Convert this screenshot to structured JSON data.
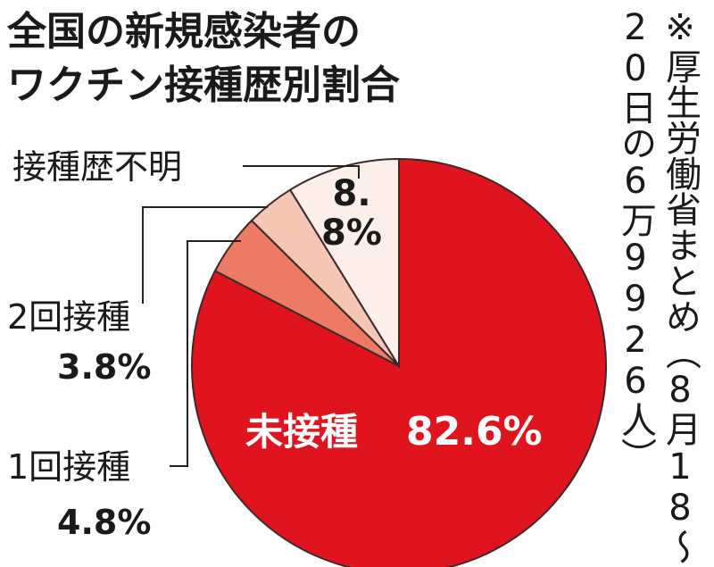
{
  "chart_data": {
    "type": "pie",
    "title_lines": [
      "全国の新規感染者の",
      "ワクチン接種歴別割合"
    ],
    "note_lines": [
      "※厚生労働省まとめ（8月18～",
      "20日の6万9926人）"
    ],
    "categories": [
      "未接種",
      "1回接種",
      "2回接種",
      "接種歴不明"
    ],
    "values": [
      82.6,
      4.8,
      3.8,
      8.8
    ],
    "value_labels": [
      "82.6%",
      "4.8%",
      "3.8%",
      "8.8%"
    ],
    "colors": [
      "#e0141e",
      "#ec7a64",
      "#f5c6b4",
      "#fcefea"
    ]
  }
}
